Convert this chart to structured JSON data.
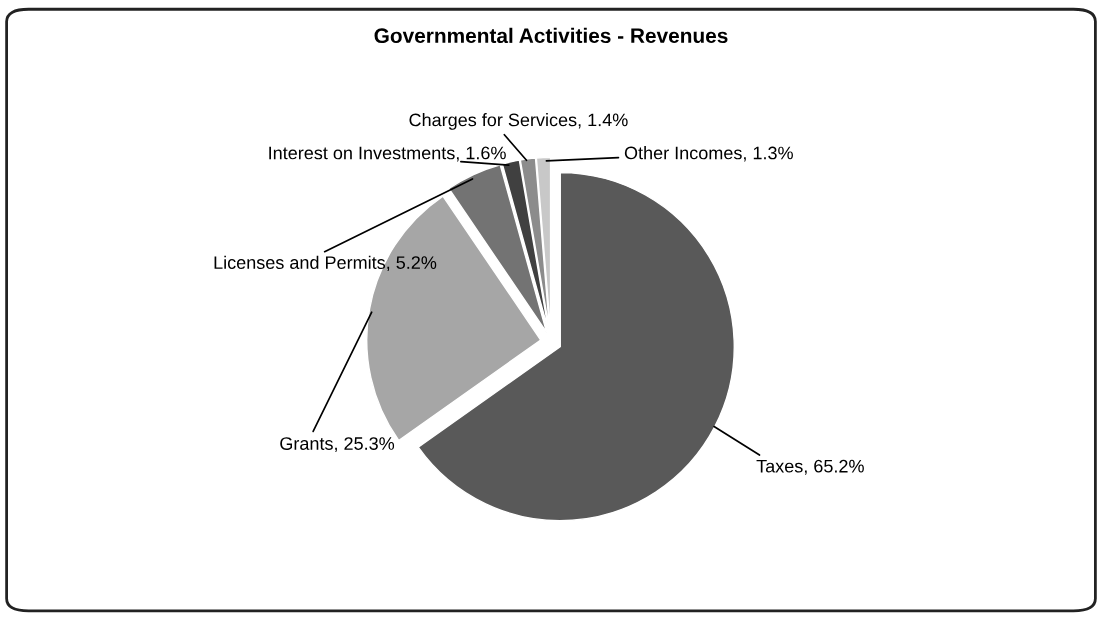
{
  "chart_data": {
    "type": "pie",
    "title": "Governmental Activities - Revenues",
    "categories": [
      "Taxes",
      "Grants",
      "Licenses and Permits",
      "Interest on Investments",
      "Charges for Services",
      "Other Incomes"
    ],
    "values": [
      65.2,
      25.3,
      5.2,
      1.6,
      1.4,
      1.3
    ],
    "colors": [
      "#595959",
      "#a6a6a6",
      "#737373",
      "#404040",
      "#8c8c8c",
      "#c8c8c8"
    ],
    "value_labels": [
      ", 65.2%",
      ", 25.3%",
      ", 5.2%",
      ", 1.6%",
      ", 1.4%",
      ", 1.3%"
    ],
    "legend": false
  }
}
